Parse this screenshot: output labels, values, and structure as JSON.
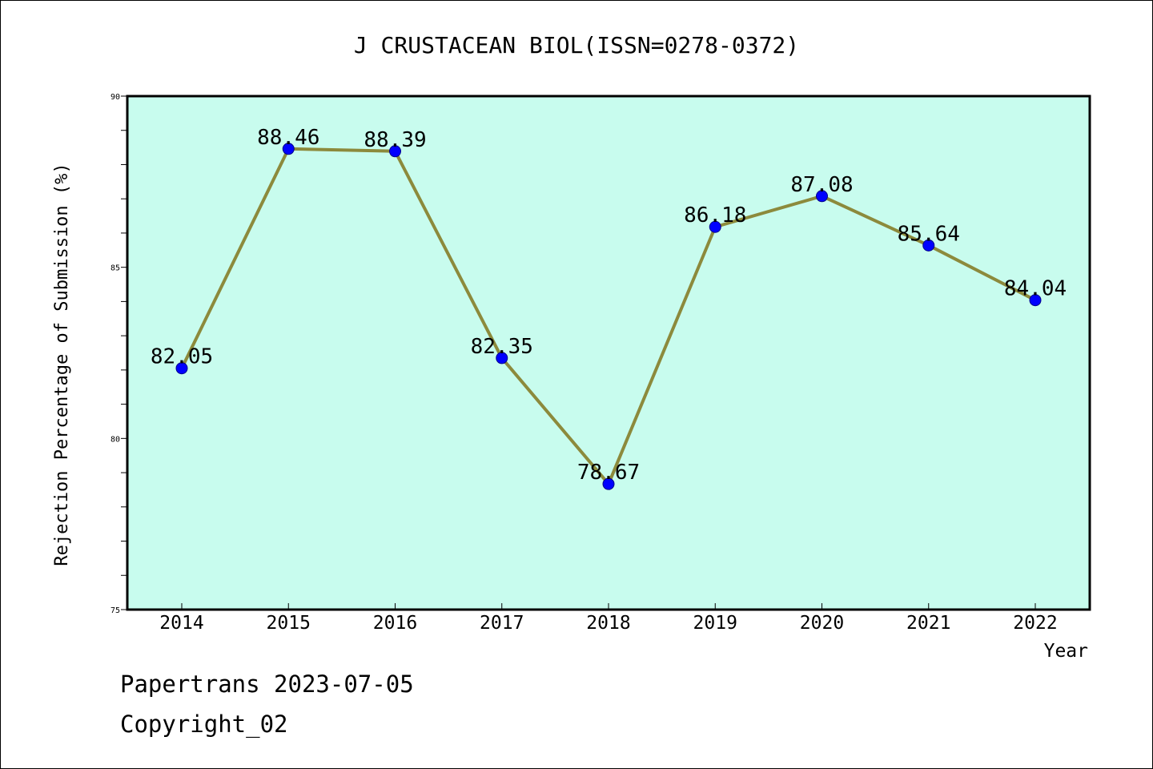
{
  "chart_data": {
    "type": "line",
    "title": "J CRUSTACEAN BIOL(ISSN=0278-0372)",
    "xlabel": "Year",
    "ylabel": "Rejection Percentage of Submission (%)",
    "categories": [
      "2014",
      "2015",
      "2016",
      "2017",
      "2018",
      "2019",
      "2020",
      "2021",
      "2022"
    ],
    "series": [
      {
        "values": [
          82.05,
          88.46,
          88.39,
          82.35,
          78.67,
          86.18,
          87.08,
          85.64,
          84.04
        ],
        "data_labels": [
          "82.05",
          "88.46",
          "88.39",
          "82.35",
          "78.67",
          "86.18",
          "87.08",
          "85.64",
          "84.04"
        ]
      }
    ],
    "ylim": [
      75,
      90
    ],
    "yticks": [
      75,
      80,
      85,
      90
    ],
    "grid": false,
    "colors": {
      "plot_background": "#c8fcee",
      "line": "#8c8a3c",
      "marker": "#0000ff"
    }
  },
  "footer": {
    "line1": "Papertrans 2023-07-05",
    "line2": "Copyright_02"
  }
}
